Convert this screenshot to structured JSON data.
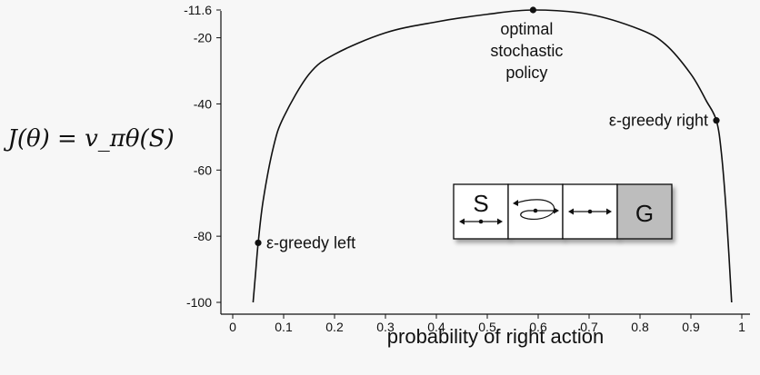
{
  "chart_data": {
    "type": "line",
    "xlabel": "probability of right action",
    "ylabel": "J(θ) = v_πθ(S)",
    "xlim": [
      0,
      1
    ],
    "ylim": [
      -100,
      -11.6
    ],
    "x_ticks": [
      "0",
      "0.1",
      "0.2",
      "0.3",
      "0.4",
      "0.5",
      "0.6",
      "0.7",
      "0.8",
      "0.9",
      "1"
    ],
    "y_ticks": [
      "-11.6",
      "-20",
      "-40",
      "-60",
      "-80",
      "-100"
    ],
    "series": [
      {
        "x": [
          0.04,
          0.045,
          0.05,
          0.06,
          0.08,
          0.1,
          0.15,
          0.2,
          0.3,
          0.4,
          0.5,
          0.59,
          0.7,
          0.8,
          0.85,
          0.9,
          0.93,
          0.95,
          0.96,
          0.97,
          0.98
        ],
        "y": [
          -100,
          -91,
          -82,
          -69,
          -53,
          -44,
          -31,
          -25,
          -18.5,
          -15.2,
          -12.9,
          -11.6,
          -12.9,
          -17.5,
          -22,
          -31,
          -39,
          -45,
          -55,
          -74,
          -100
        ]
      }
    ],
    "points": [
      {
        "x": 0.59,
        "y": -11.6,
        "label": "optimal\nstochastic\npolicy"
      },
      {
        "x": 0.95,
        "y": -45,
        "label": "ε-greedy right"
      },
      {
        "x": 0.05,
        "y": -82,
        "label": "ε-greedy left"
      }
    ],
    "inset": {
      "cells": [
        {
          "text": "S",
          "arrow": "both",
          "shaded": false
        },
        {
          "text": "",
          "arrow": "reversed",
          "shaded": false
        },
        {
          "text": "",
          "arrow": "both",
          "shaded": false
        },
        {
          "text": "G",
          "arrow": "none",
          "shaded": true
        }
      ]
    },
    "colors": {
      "line": "#111111",
      "goal_cell": "#bdbdbd",
      "background": "#f7f7f7"
    }
  }
}
